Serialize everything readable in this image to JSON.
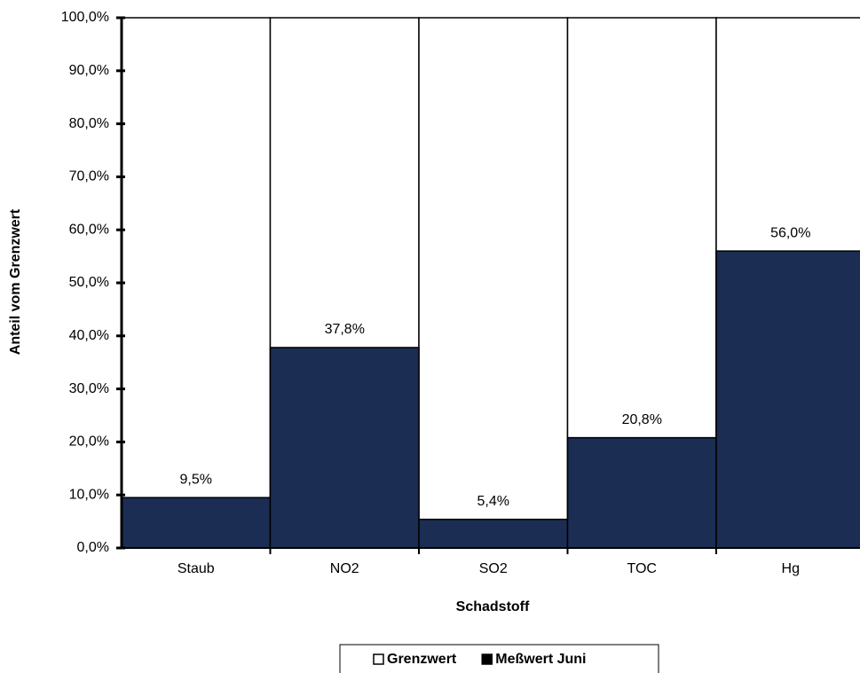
{
  "chart_data": {
    "type": "bar",
    "xlabel": "Schadstoff",
    "ylabel": "Anteil vom Grenzwert",
    "categories": [
      "Staub",
      "NO2",
      "SO2",
      "TOC",
      "Hg"
    ],
    "series": [
      {
        "name": "Grenzwert",
        "color": "#ffffff",
        "values": [
          100,
          100,
          100,
          100,
          100
        ]
      },
      {
        "name": "Meßwert Juni",
        "color": "#1b2d52",
        "values": [
          9.5,
          37.8,
          5.4,
          20.8,
          56.0
        ],
        "value_labels": [
          "9,5%",
          "37,8%",
          "5,4%",
          "20,8%",
          "56,0%"
        ]
      }
    ],
    "ylim": [
      0,
      100
    ],
    "yticks": [
      {
        "value": 0,
        "label": "0,0%"
      },
      {
        "value": 10,
        "label": "10,0%"
      },
      {
        "value": 20,
        "label": "20,0%"
      },
      {
        "value": 30,
        "label": "30,0%"
      },
      {
        "value": 40,
        "label": "40,0%"
      },
      {
        "value": 50,
        "label": "50,0%"
      },
      {
        "value": 60,
        "label": "60,0%"
      },
      {
        "value": 70,
        "label": "70,0%"
      },
      {
        "value": 80,
        "label": "80,0%"
      },
      {
        "value": 90,
        "label": "90,0%"
      },
      {
        "value": 100,
        "label": "100,0%"
      }
    ],
    "grid": false,
    "legend": "bottom"
  }
}
